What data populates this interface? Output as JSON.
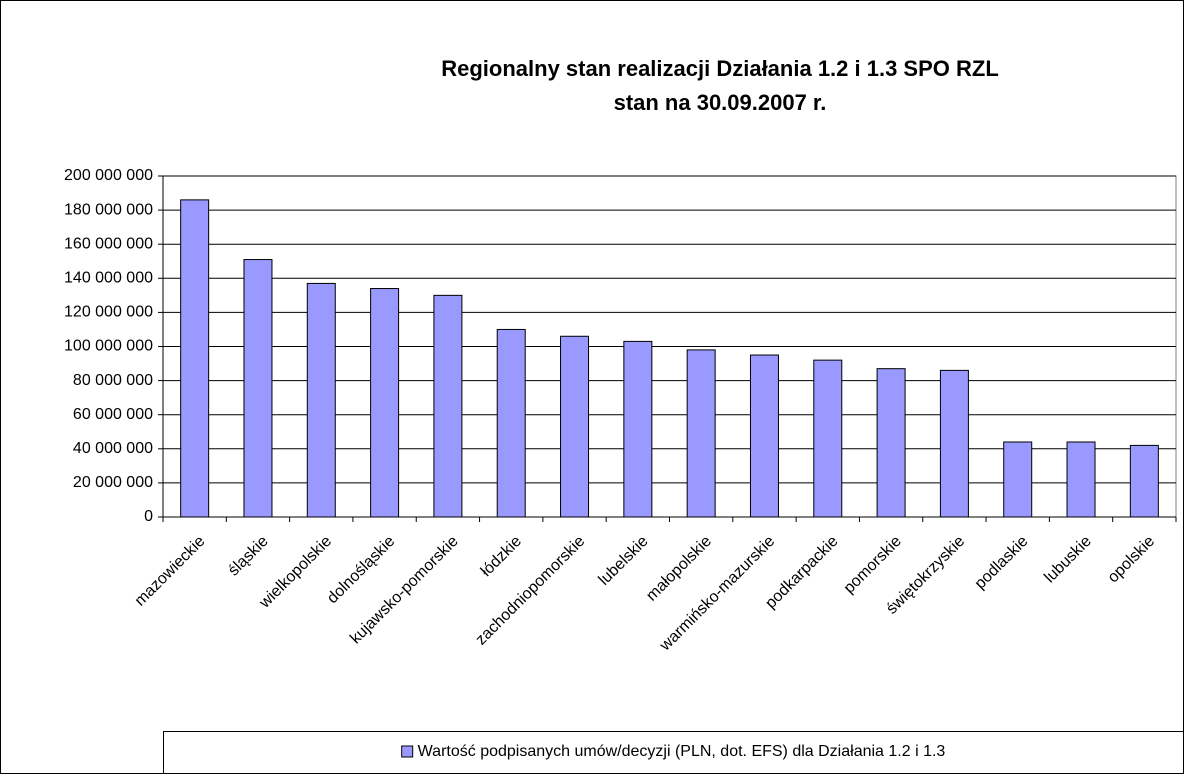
{
  "chart_data": {
    "type": "bar",
    "title": "Regionalny stan realizacji Działania 1.2 i 1.3 SPO RZL",
    "subtitle": "stan na 30.09.2007 r.",
    "categories": [
      "mazowieckie",
      "śląskie",
      "wielkopolskie",
      "dolnośląskie",
      "kujawsko-pomorskie",
      "łódzkie",
      "zachodniopomorskie",
      "lubelskie",
      "małopolskie",
      "warmińsko-mazurskie",
      "podkarpackie",
      "pomorskie",
      "świętokrzyskie",
      "podlaskie",
      "lubuskie",
      "opolskie"
    ],
    "series": [
      {
        "name": "Wartość podpisanych umów/decyzji (PLN, dot. EFS) dla Działania 1.2 i 1.3",
        "color": "#9999ff",
        "values": [
          186000000,
          151000000,
          137000000,
          134000000,
          130000000,
          110000000,
          106000000,
          103000000,
          98000000,
          95000000,
          92000000,
          87000000,
          86000000,
          44000000,
          44000000,
          42000000
        ]
      }
    ],
    "ylim": [
      0,
      200000000
    ],
    "yticks": [
      0,
      {
        "value": 20000000,
        "label": "20 000 000"
      },
      {
        "value": 40000000,
        "label": "40 000 000"
      },
      {
        "value": 60000000,
        "label": "60 000 000"
      },
      {
        "value": 80000000,
        "label": "80 000 000"
      },
      {
        "value": 100000000,
        "label": "100 000 000"
      },
      {
        "value": 120000000,
        "label": "120 000 000"
      },
      {
        "value": 140000000,
        "label": "140 000 000"
      },
      {
        "value": 160000000,
        "label": "160 000 000"
      },
      {
        "value": 180000000,
        "label": "180 000 000"
      },
      {
        "value": 200000000,
        "label": "200 000 000"
      }
    ],
    "grid": true,
    "legend": "bottom"
  }
}
